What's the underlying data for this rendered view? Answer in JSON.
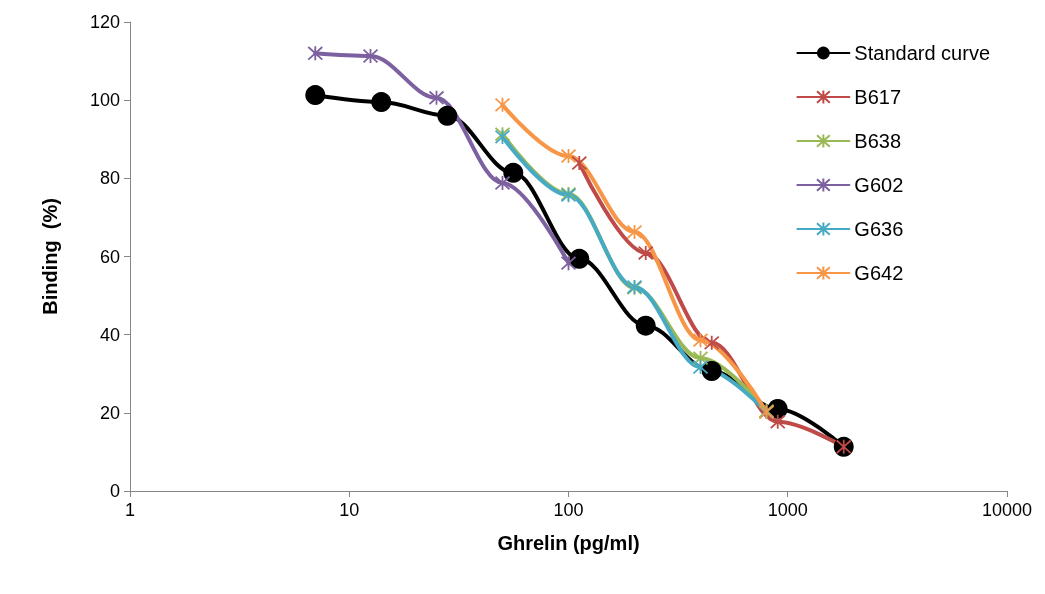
{
  "chart_data": {
    "type": "line",
    "xlabel": "Ghrelin (pg/ml)",
    "ylabel": "Binding  (%)",
    "log": "x",
    "xlim": [
      1,
      10000
    ],
    "xticks": [
      1,
      10,
      100,
      1000,
      10000
    ],
    "ylim": [
      0,
      120
    ],
    "yticks": [
      0,
      20,
      40,
      60,
      80,
      100,
      120
    ],
    "grid": false,
    "legend": "top right",
    "line_style": "solid",
    "series": [
      {
        "name": "Standard curve",
        "color": "#000000",
        "marker": "circle",
        "x": [
          7,
          14,
          28,
          56,
          112,
          225,
          450,
          900,
          1800
        ],
        "values": [
          101.3,
          99.5,
          96,
          81.4,
          59.4,
          42.3,
          30.7,
          21,
          11.3
        ]
      },
      {
        "name": "B617",
        "color": "#be4b48",
        "marker": "cross",
        "x": [
          112,
          225,
          450,
          900,
          1800
        ],
        "values": [
          83.9,
          60.9,
          37.9,
          17.7,
          11.3
        ]
      },
      {
        "name": "B638",
        "color": "#98b954",
        "marker": "cross",
        "x": [
          50,
          100,
          200,
          400,
          800
        ],
        "values": [
          91.3,
          76,
          52,
          34,
          20.5
        ]
      },
      {
        "name": "G602",
        "color": "#7d60a0",
        "marker": "cross",
        "x": [
          7,
          12.5,
          25,
          50,
          100
        ],
        "values": [
          112,
          111.3,
          100.6,
          78.8,
          58.3
        ]
      },
      {
        "name": "G636",
        "color": "#46aac5",
        "marker": "cross",
        "x": [
          50,
          100,
          200,
          400,
          800
        ],
        "values": [
          90.6,
          75.7,
          52.2,
          31.7,
          20.2
        ]
      },
      {
        "name": "G642",
        "color": "#f79646",
        "marker": "cross",
        "x": [
          50,
          100,
          200,
          400,
          800
        ],
        "values": [
          98.8,
          85.7,
          66.3,
          38.6,
          20.2
        ]
      }
    ]
  }
}
